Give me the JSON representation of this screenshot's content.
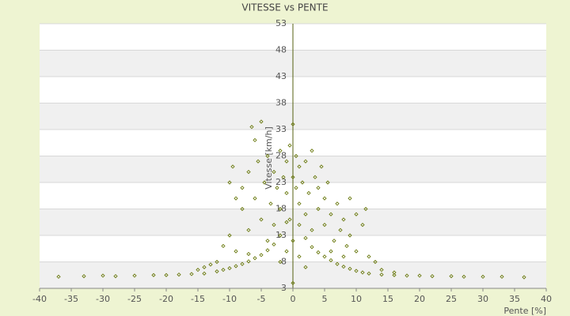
{
  "chart_data": {
    "type": "scatter",
    "title": "VITESSE vs PENTE",
    "x_label": "Pente [%]",
    "y_label": "Vitesse [km/h]",
    "xlim": [
      -40,
      40
    ],
    "xticks": [
      -40,
      -35,
      -30,
      -25,
      -20,
      -15,
      -10,
      -5,
      0,
      5,
      10,
      15,
      20,
      25,
      30,
      35,
      40
    ],
    "ylim": [
      3,
      53
    ],
    "yticks": [
      3,
      8,
      13,
      18,
      23,
      28,
      33,
      38,
      43,
      48,
      53
    ],
    "grid": true,
    "series": [
      {
        "color": "#6b7a10",
        "x": [
          -37,
          -33,
          -30,
          -28,
          -25,
          -22,
          -20,
          -18,
          -16,
          -14,
          -12,
          -11,
          -10,
          -9,
          -8,
          -7,
          -6,
          -5,
          -4,
          -3,
          -2,
          -1,
          1,
          2,
          3,
          4,
          5,
          6,
          7,
          8,
          9,
          10,
          11,
          12,
          14,
          16,
          18,
          20,
          22,
          25,
          27,
          30,
          33,
          36.5,
          -10,
          -9.5,
          -9,
          -8,
          -8,
          -7,
          -7,
          -6.5,
          -6,
          -6,
          -5.5,
          -5,
          -5,
          -4.5,
          -4,
          -4,
          -3.5,
          -3,
          -3,
          -2.5,
          -2,
          -2,
          -1.5,
          -1,
          -1,
          -0.5,
          -0.5,
          0,
          0,
          0,
          0,
          0.5,
          0.5,
          1,
          1,
          1.5,
          2,
          2,
          2.5,
          3,
          3,
          3.5,
          4,
          4,
          4.5,
          5,
          5,
          5.5,
          6,
          6.5,
          7,
          7.5,
          8,
          8.5,
          9,
          9,
          10,
          10,
          11,
          11.5,
          12,
          13,
          -11,
          -12,
          -13,
          -14,
          -15,
          -10,
          -9,
          -7,
          6,
          8,
          14,
          16,
          -1,
          1,
          -2,
          2
        ],
        "values": [
          5.2,
          5.3,
          5.4,
          5.3,
          5.4,
          5.5,
          5.5,
          5.6,
          5.7,
          5.8,
          6.2,
          6.5,
          6.8,
          7.2,
          7.6,
          8.1,
          8.7,
          9.3,
          10.2,
          11.3,
          13,
          15.5,
          15,
          12.5,
          10.8,
          9.8,
          9,
          8.3,
          7.6,
          7.1,
          6.7,
          6.3,
          6,
          5.8,
          5.6,
          5.5,
          5.4,
          5.4,
          5.3,
          5.3,
          5.2,
          5.2,
          5.2,
          5.1,
          23,
          26,
          20,
          18,
          22,
          25,
          14,
          33.5,
          31,
          20,
          27,
          34.5,
          16,
          23,
          28,
          12,
          19,
          25,
          15,
          22,
          29,
          18,
          24,
          21,
          27,
          16,
          30,
          34,
          24,
          12,
          4,
          22,
          28,
          19,
          26,
          23,
          17,
          27,
          21,
          29,
          14,
          24,
          18,
          22,
          26,
          15,
          20,
          23,
          17,
          12,
          19,
          14,
          16,
          11,
          13,
          20,
          10,
          17,
          15,
          18,
          9,
          8,
          11,
          8,
          7.5,
          7,
          6.5,
          13,
          10,
          9.5,
          10,
          9,
          6.5,
          6,
          10,
          9,
          8,
          7
        ]
      }
    ]
  }
}
